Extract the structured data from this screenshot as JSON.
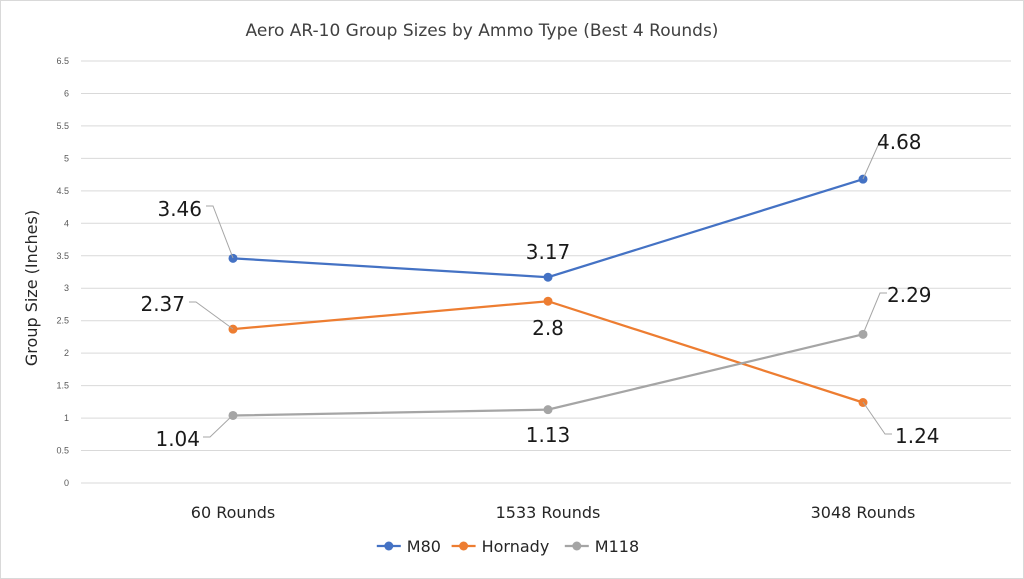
{
  "chart_data": {
    "type": "line",
    "title": "Aero AR-10 Group Sizes by Ammo Type (Best 4 Rounds)",
    "ylabel": "Group Size (Inches)",
    "xlabel": "",
    "categories": [
      "60 Rounds",
      "1533 Rounds",
      "3048 Rounds"
    ],
    "ylim": [
      0,
      6.5
    ],
    "ytick_step": 0.5,
    "ytick_labels": [
      "0",
      "0.5",
      "1",
      "1.5",
      "2",
      "2.5",
      "3",
      "3.5",
      "4",
      "4.5",
      "5",
      "5.5",
      "6",
      "6.5"
    ],
    "grid": true,
    "legend_position": "bottom",
    "series": [
      {
        "name": "M80",
        "color": "#4472c4",
        "values": [
          3.46,
          3.17,
          4.68
        ],
        "labels": [
          "3.46",
          "3.17",
          "4.68"
        ]
      },
      {
        "name": "Hornady",
        "color": "#ed7d31",
        "values": [
          2.37,
          2.8,
          1.24
        ],
        "labels": [
          "2.37",
          "2.8",
          "1.24"
        ]
      },
      {
        "name": "M118",
        "color": "#a5a5a5",
        "values": [
          1.04,
          1.13,
          2.29
        ],
        "labels": [
          "1.04",
          "1.13",
          "2.29"
        ]
      }
    ]
  }
}
